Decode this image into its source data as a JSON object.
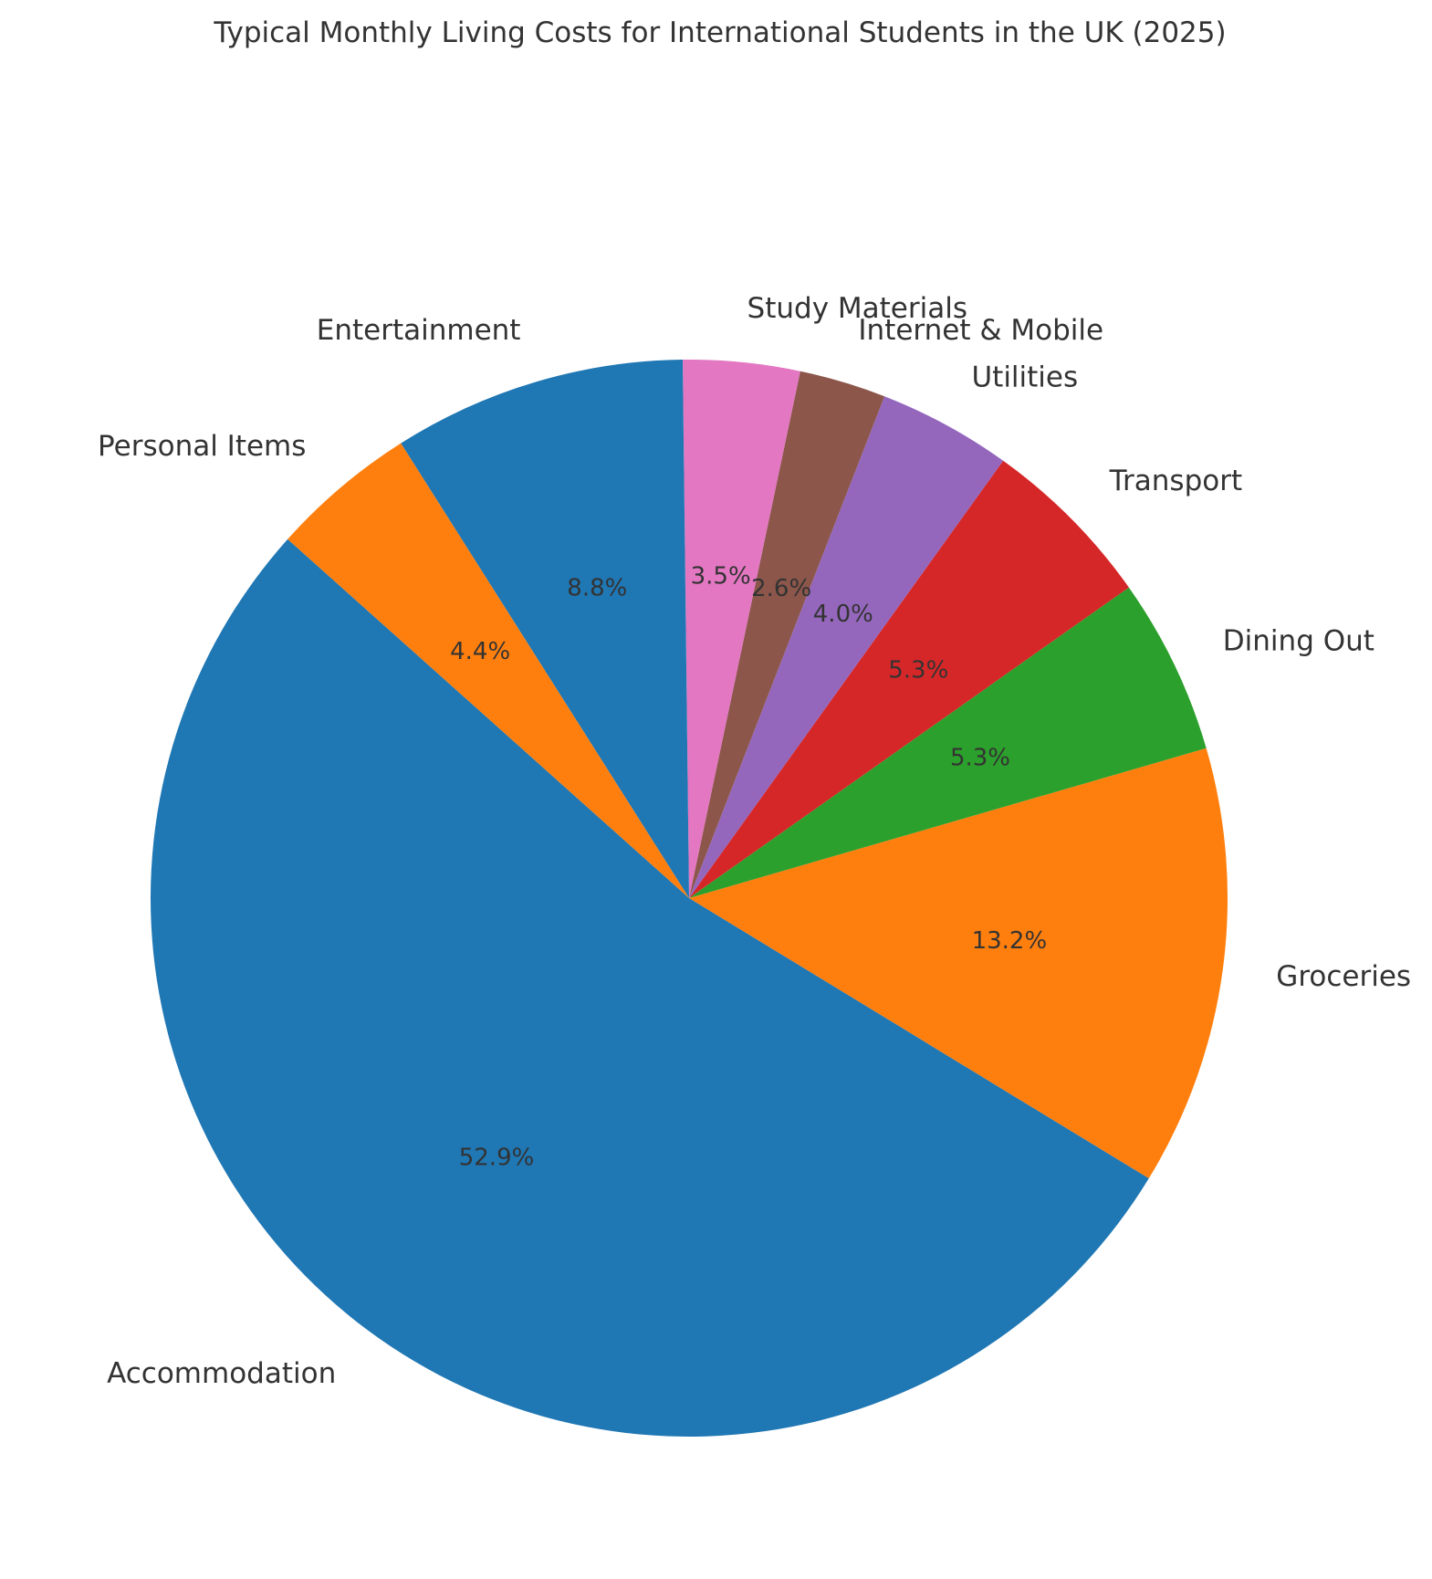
{
  "chart_data": {
    "type": "pie",
    "title": "Typical Monthly Living Costs for International Students in the UK (2025)",
    "start_angle_deg": 138.2,
    "direction": "counterclockwise",
    "slices": [
      {
        "label": "Accommodation",
        "percent": 52.9,
        "pct_text": "52.9%",
        "color": "#1f77b4"
      },
      {
        "label": "Groceries",
        "percent": 13.2,
        "pct_text": "13.2%",
        "color": "#ff7f0e"
      },
      {
        "label": "Dining Out",
        "percent": 5.3,
        "pct_text": "5.3%",
        "color": "#2ca02c"
      },
      {
        "label": "Transport",
        "percent": 5.3,
        "pct_text": "5.3%",
        "color": "#d62728"
      },
      {
        "label": "Utilities",
        "percent": 4.0,
        "pct_text": "4.0%",
        "color": "#9467bd"
      },
      {
        "label": "Internet & Mobile",
        "percent": 2.6,
        "pct_text": "2.6%",
        "color": "#8c564b"
      },
      {
        "label": "Study Materials",
        "percent": 3.5,
        "pct_text": "3.5%",
        "color": "#e377c2"
      },
      {
        "label": "Entertainment",
        "percent": 8.8,
        "pct_text": "8.8%",
        "color": "#1f77b4"
      },
      {
        "label": "Personal Items",
        "percent": 4.4,
        "pct_text": "4.4%",
        "color": "#ff7f0e"
      }
    ]
  }
}
